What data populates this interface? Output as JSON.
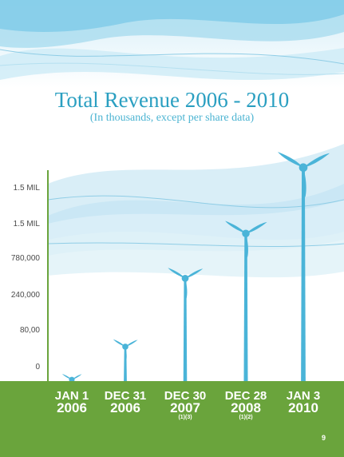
{
  "chart_data": {
    "type": "bar",
    "title": "Total Revenue 2006 - 2010",
    "subtitle": "(In thousands, except per share data)",
    "y_tick_labels": [
      "0",
      "80,00",
      "240,000",
      "780,000",
      "1.5 MIL",
      "1.5 MIL"
    ],
    "categories": [
      {
        "line1": "JAN 1",
        "line2": "2006",
        "footnote": ""
      },
      {
        "line1": "DEC 31",
        "line2": "2006",
        "footnote": ""
      },
      {
        "line1": "DEC 30",
        "line2": "2007",
        "footnote": "(1)(3)"
      },
      {
        "line1": "DEC 28",
        "line2": "2008",
        "footnote": "(1)(2)"
      },
      {
        "line1": "JAN 3",
        "line2": "2010",
        "footnote": ""
      }
    ],
    "values": [
      0.2,
      0.9,
      2.35,
      3.3,
      4.7
    ],
    "ylim": [
      0,
      5
    ],
    "bar_style": "wind turbines",
    "colors": {
      "turbine": "#4ab4d8",
      "ground": "#6aa43c",
      "axis": "#6aa43c"
    }
  },
  "page_number": "9"
}
